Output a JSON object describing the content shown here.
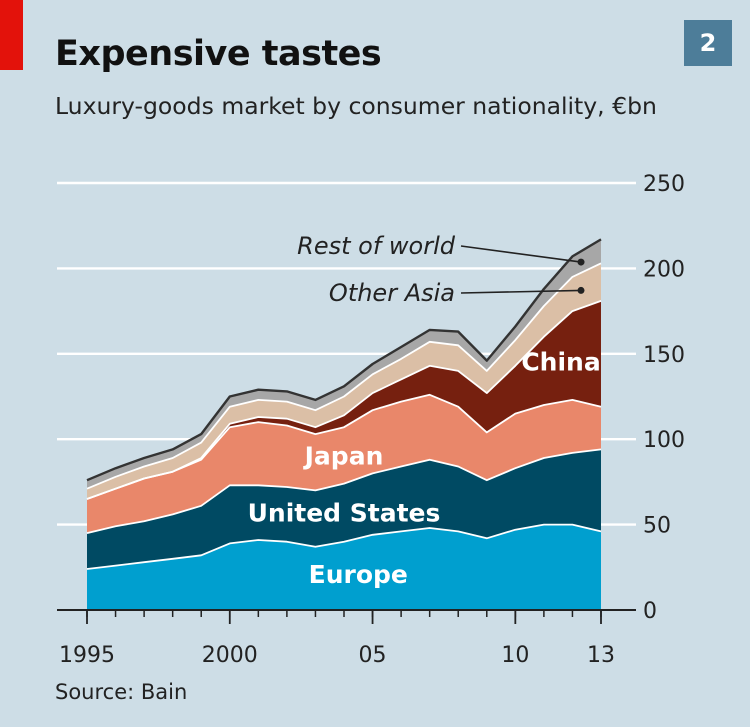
{
  "badge": "2",
  "source": "Source: Bain",
  "colors": {
    "background": "#cddde6",
    "europe": "#009fcf",
    "united_states": "#004a63",
    "japan": "#e9876a",
    "china": "#76200f",
    "other_asia": "#dbbfa6",
    "rest_of_world": "#a7a7a7",
    "gridline": "#ffffff",
    "brand": "#e3120b"
  },
  "chart_data": {
    "type": "area",
    "stacked": true,
    "title": "Expensive tastes",
    "subtitle": "Luxury-goods market by consumer nationality, €bn",
    "x": [
      1995,
      1996,
      1997,
      1998,
      1999,
      2000,
      2001,
      2002,
      2003,
      2004,
      2005,
      2006,
      2007,
      2008,
      2009,
      2010,
      2011,
      2012,
      2013
    ],
    "x_tick_values": [
      1995,
      2000,
      2005,
      2010,
      2013
    ],
    "x_tick_labels": [
      "1995",
      "2000",
      "05",
      "10",
      "13"
    ],
    "ylim": [
      0,
      250
    ],
    "y_ticks": [
      0,
      50,
      100,
      150,
      200,
      250
    ],
    "y_axis_side": "right",
    "grid": true,
    "series": [
      {
        "name": "Europe",
        "color_key": "europe",
        "values": [
          24,
          26,
          28,
          30,
          32,
          39,
          41,
          40,
          37,
          40,
          44,
          46,
          48,
          46,
          42,
          47,
          50,
          50,
          46
        ]
      },
      {
        "name": "United States",
        "color_key": "united_states",
        "values": [
          21,
          23,
          24,
          26,
          29,
          34,
          32,
          32,
          33,
          34,
          36,
          38,
          40,
          38,
          34,
          36,
          39,
          42,
          48
        ]
      },
      {
        "name": "Japan",
        "color_key": "japan",
        "values": [
          20,
          22,
          25,
          25,
          27,
          34,
          37,
          36,
          33,
          33,
          37,
          38,
          38,
          35,
          28,
          32,
          31,
          31,
          25
        ]
      },
      {
        "name": "China",
        "color_key": "china",
        "values": [
          0,
          0,
          0,
          0,
          1,
          2,
          3,
          4,
          4,
          7,
          10,
          13,
          17,
          21,
          23,
          28,
          40,
          52,
          62
        ]
      },
      {
        "name": "Other Asia",
        "color_key": "other_asia",
        "values": [
          6,
          7,
          7,
          8,
          9,
          10,
          10,
          10,
          10,
          11,
          11,
          12,
          14,
          15,
          13,
          15,
          18,
          20,
          22
        ]
      },
      {
        "name": "Rest of world",
        "color_key": "rest_of_world",
        "values": [
          5,
          5,
          5,
          5,
          5,
          6,
          6,
          6,
          6,
          6,
          6,
          7,
          7,
          8,
          6,
          8,
          10,
          12,
          14
        ]
      }
    ],
    "inline_labels": [
      "Europe",
      "United States",
      "Japan",
      "China"
    ],
    "callout_labels": [
      "Rest of world",
      "Other Asia"
    ]
  }
}
